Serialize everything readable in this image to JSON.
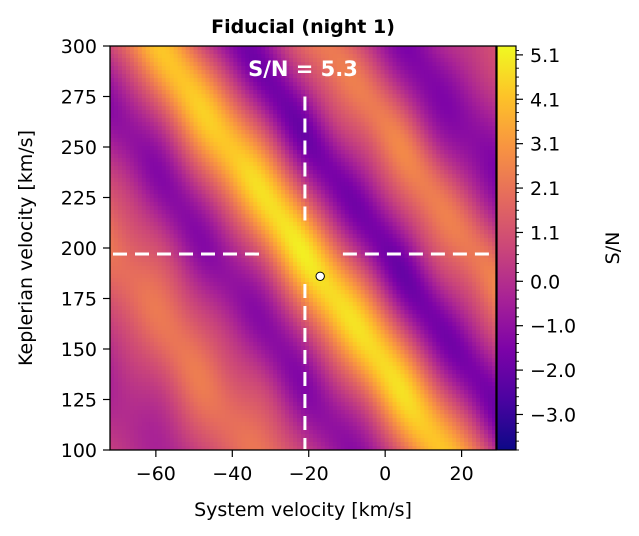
{
  "chart_data": {
    "type": "heatmap",
    "title": "Fiducial (night 1)",
    "xlabel": "System velocity [km/s]",
    "ylabel": "Keplerian velocity [km/s]",
    "xlim": [
      -72,
      29
    ],
    "ylim": [
      100,
      300
    ],
    "xticks": [
      -60,
      -40,
      -20,
      0,
      20
    ],
    "xtick_labels": [
      "−60",
      "−40",
      "−20",
      "0",
      "20"
    ],
    "yticks": [
      100,
      125,
      150,
      175,
      200,
      225,
      250,
      275,
      300
    ],
    "ytick_labels": [
      "100",
      "125",
      "150",
      "175",
      "200",
      "225",
      "250",
      "275",
      "300"
    ],
    "annotation": "S/N = 5.3",
    "marker": {
      "x": -17,
      "y": 186
    },
    "crosshair": {
      "x": -21,
      "y": 197
    },
    "colorbar": {
      "label": "S/N",
      "colormap": "plasma",
      "range": [
        -3.8,
        5.3
      ],
      "ticks": [
        5.1,
        4.1,
        3.1,
        2.1,
        1.1,
        0.0,
        -1.0,
        -2.0,
        -3.0
      ],
      "tick_labels": [
        "5.1",
        "4.1",
        "3.1",
        "2.1",
        "1.1",
        "0.0",
        "−1.0",
        "−2.0",
        "−3.0"
      ]
    }
  }
}
